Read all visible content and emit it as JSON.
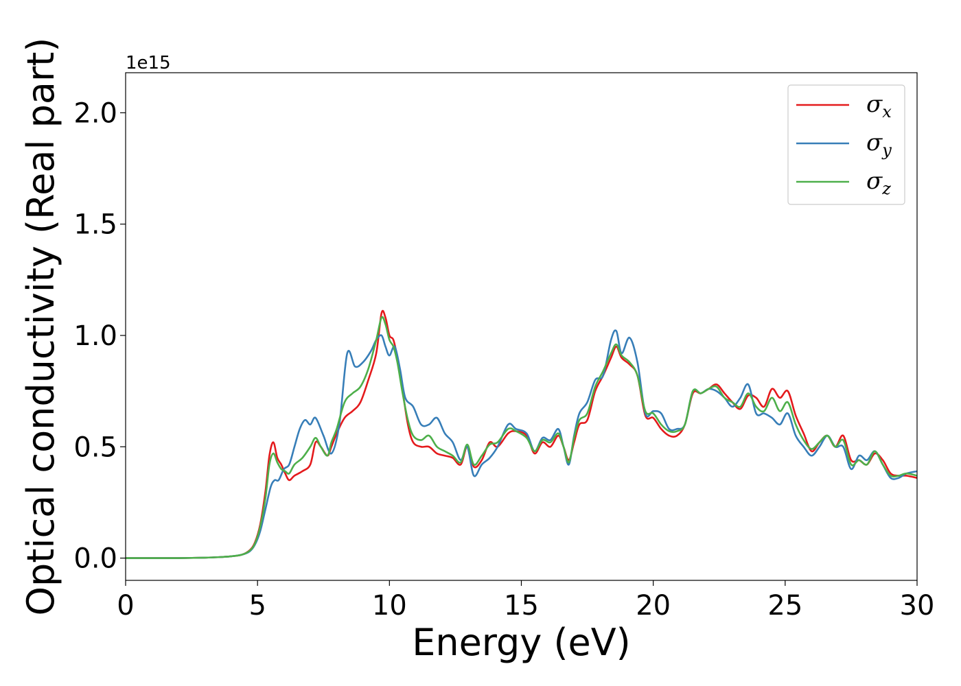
{
  "chart_data": {
    "type": "line",
    "xlabel": "Energy (eV)",
    "ylabel": "Optical conductivity (Real part)",
    "y_offset_label": "1e15",
    "xlim": [
      0,
      30
    ],
    "ylim": [
      -0.1,
      2.18
    ],
    "xticks": [
      0,
      5,
      10,
      15,
      20,
      25,
      30
    ],
    "xtick_labels": [
      "0",
      "5",
      "10",
      "15",
      "20",
      "25",
      "30"
    ],
    "yticks": [
      0.0,
      0.5,
      1.0,
      1.5,
      2.0
    ],
    "ytick_labels": [
      "0.0",
      "0.5",
      "1.0",
      "1.5",
      "2.0"
    ],
    "grid": false,
    "legend_position": "top-right",
    "series": [
      {
        "name": "σ",
        "sub": "x",
        "color": "#e41a1c",
        "x": [
          0,
          1,
          2,
          3,
          3.5,
          4,
          4.4,
          4.7,
          4.9,
          5.1,
          5.3,
          5.45,
          5.6,
          5.75,
          5.9,
          6.05,
          6.2,
          6.4,
          6.7,
          7.0,
          7.2,
          7.4,
          7.65,
          7.8,
          8.0,
          8.3,
          8.6,
          8.9,
          9.2,
          9.5,
          9.7,
          9.85,
          10.0,
          10.15,
          10.3,
          10.5,
          10.7,
          10.9,
          11.2,
          11.5,
          11.8,
          12.1,
          12.4,
          12.7,
          12.95,
          13.2,
          13.5,
          13.8,
          14.1,
          14.5,
          14.8,
          15.2,
          15.5,
          15.8,
          16.1,
          16.4,
          16.6,
          16.8,
          17.0,
          17.2,
          17.5,
          17.8,
          18.1,
          18.4,
          18.6,
          18.8,
          19.1,
          19.4,
          19.7,
          20.0,
          20.3,
          20.6,
          20.9,
          21.2,
          21.5,
          21.8,
          22.1,
          22.4,
          22.7,
          23.0,
          23.3,
          23.6,
          23.9,
          24.2,
          24.5,
          24.8,
          25.1,
          25.4,
          25.7,
          26.0,
          26.3,
          26.6,
          26.9,
          27.2,
          27.5,
          27.8,
          28.1,
          28.4,
          28.7,
          29.0,
          29.3,
          29.6,
          30.0
        ],
        "y": [
          0,
          0,
          0,
          0.002,
          0.004,
          0.008,
          0.015,
          0.035,
          0.07,
          0.15,
          0.3,
          0.46,
          0.52,
          0.45,
          0.42,
          0.38,
          0.35,
          0.37,
          0.39,
          0.42,
          0.52,
          0.5,
          0.46,
          0.5,
          0.56,
          0.63,
          0.66,
          0.7,
          0.8,
          0.92,
          1.1,
          1.08,
          1.0,
          0.98,
          0.9,
          0.75,
          0.6,
          0.52,
          0.5,
          0.5,
          0.47,
          0.46,
          0.45,
          0.42,
          0.5,
          0.41,
          0.44,
          0.52,
          0.5,
          0.56,
          0.57,
          0.55,
          0.47,
          0.52,
          0.5,
          0.55,
          0.5,
          0.44,
          0.52,
          0.6,
          0.62,
          0.75,
          0.82,
          0.9,
          0.95,
          0.9,
          0.87,
          0.82,
          0.64,
          0.63,
          0.58,
          0.55,
          0.55,
          0.6,
          0.74,
          0.74,
          0.76,
          0.78,
          0.74,
          0.7,
          0.67,
          0.73,
          0.72,
          0.68,
          0.76,
          0.72,
          0.75,
          0.64,
          0.56,
          0.48,
          0.52,
          0.55,
          0.5,
          0.55,
          0.44,
          0.44,
          0.42,
          0.47,
          0.44,
          0.38,
          0.37,
          0.37,
          0.36
        ]
      },
      {
        "name": "σ",
        "sub": "y",
        "color": "#377eb8",
        "x": [
          0,
          1,
          2,
          3,
          3.5,
          4,
          4.4,
          4.7,
          4.9,
          5.1,
          5.3,
          5.5,
          5.65,
          5.8,
          6.0,
          6.2,
          6.4,
          6.6,
          6.8,
          7.0,
          7.2,
          7.5,
          7.8,
          8.1,
          8.4,
          8.7,
          9.0,
          9.3,
          9.5,
          9.7,
          9.85,
          10.0,
          10.2,
          10.4,
          10.6,
          10.9,
          11.2,
          11.5,
          11.8,
          12.1,
          12.4,
          12.7,
          12.95,
          13.2,
          13.5,
          13.8,
          14.1,
          14.5,
          14.8,
          15.2,
          15.5,
          15.8,
          16.1,
          16.4,
          16.6,
          16.8,
          17.0,
          17.2,
          17.5,
          17.8,
          18.1,
          18.4,
          18.6,
          18.8,
          19.1,
          19.4,
          19.7,
          20.0,
          20.3,
          20.6,
          20.9,
          21.2,
          21.5,
          21.8,
          22.1,
          22.4,
          22.7,
          23.0,
          23.3,
          23.6,
          23.9,
          24.2,
          24.5,
          24.8,
          25.1,
          25.4,
          25.7,
          26.0,
          26.3,
          26.6,
          26.9,
          27.2,
          27.5,
          27.8,
          28.1,
          28.4,
          28.7,
          29.0,
          29.3,
          29.6,
          30.0
        ],
        "y": [
          0,
          0,
          0,
          0.002,
          0.004,
          0.008,
          0.015,
          0.03,
          0.06,
          0.12,
          0.22,
          0.32,
          0.35,
          0.35,
          0.4,
          0.42,
          0.5,
          0.58,
          0.62,
          0.6,
          0.63,
          0.55,
          0.47,
          0.6,
          0.92,
          0.86,
          0.88,
          0.93,
          0.98,
          1.0,
          0.95,
          0.91,
          0.95,
          0.85,
          0.72,
          0.68,
          0.6,
          0.6,
          0.63,
          0.56,
          0.52,
          0.44,
          0.5,
          0.37,
          0.42,
          0.45,
          0.5,
          0.6,
          0.58,
          0.56,
          0.48,
          0.54,
          0.53,
          0.58,
          0.5,
          0.42,
          0.55,
          0.65,
          0.7,
          0.8,
          0.82,
          0.98,
          1.02,
          0.92,
          0.99,
          0.88,
          0.65,
          0.66,
          0.65,
          0.58,
          0.58,
          0.6,
          0.75,
          0.74,
          0.76,
          0.75,
          0.72,
          0.68,
          0.72,
          0.78,
          0.65,
          0.65,
          0.63,
          0.6,
          0.65,
          0.55,
          0.5,
          0.46,
          0.5,
          0.55,
          0.5,
          0.5,
          0.4,
          0.46,
          0.44,
          0.48,
          0.42,
          0.36,
          0.36,
          0.38,
          0.39
        ]
      },
      {
        "name": "σ",
        "sub": "z",
        "color": "#4daf4a",
        "x": [
          0,
          1,
          2,
          3,
          3.5,
          4,
          4.4,
          4.7,
          4.9,
          5.1,
          5.3,
          5.45,
          5.6,
          5.75,
          5.9,
          6.05,
          6.2,
          6.4,
          6.7,
          7.0,
          7.2,
          7.4,
          7.65,
          7.8,
          8.0,
          8.3,
          8.6,
          8.9,
          9.2,
          9.5,
          9.7,
          9.85,
          10.0,
          10.15,
          10.3,
          10.5,
          10.7,
          10.9,
          11.2,
          11.5,
          11.8,
          12.1,
          12.4,
          12.7,
          12.95,
          13.2,
          13.5,
          13.8,
          14.1,
          14.5,
          14.8,
          15.2,
          15.5,
          15.8,
          16.1,
          16.4,
          16.6,
          16.8,
          17.0,
          17.2,
          17.5,
          17.8,
          18.1,
          18.4,
          18.6,
          18.8,
          19.1,
          19.4,
          19.7,
          20.0,
          20.3,
          20.6,
          20.9,
          21.2,
          21.5,
          21.8,
          22.1,
          22.4,
          22.7,
          23.0,
          23.3,
          23.6,
          23.9,
          24.2,
          24.5,
          24.8,
          25.1,
          25.4,
          25.7,
          26.0,
          26.3,
          26.6,
          26.9,
          27.2,
          27.5,
          27.8,
          28.1,
          28.4,
          28.7,
          29.0,
          29.3,
          29.6,
          30.0
        ],
        "y": [
          0,
          0,
          0,
          0.002,
          0.004,
          0.008,
          0.015,
          0.033,
          0.065,
          0.14,
          0.27,
          0.42,
          0.47,
          0.43,
          0.4,
          0.39,
          0.38,
          0.42,
          0.45,
          0.5,
          0.54,
          0.5,
          0.46,
          0.52,
          0.58,
          0.7,
          0.74,
          0.77,
          0.85,
          0.98,
          1.08,
          1.05,
          0.98,
          0.95,
          0.88,
          0.74,
          0.62,
          0.55,
          0.53,
          0.55,
          0.5,
          0.48,
          0.46,
          0.43,
          0.51,
          0.42,
          0.46,
          0.51,
          0.52,
          0.58,
          0.57,
          0.54,
          0.48,
          0.53,
          0.52,
          0.56,
          0.5,
          0.43,
          0.54,
          0.62,
          0.65,
          0.77,
          0.84,
          0.92,
          0.96,
          0.91,
          0.88,
          0.82,
          0.66,
          0.65,
          0.6,
          0.57,
          0.57,
          0.6,
          0.75,
          0.74,
          0.76,
          0.77,
          0.72,
          0.7,
          0.68,
          0.74,
          0.68,
          0.66,
          0.72,
          0.66,
          0.7,
          0.6,
          0.53,
          0.49,
          0.52,
          0.55,
          0.5,
          0.53,
          0.42,
          0.44,
          0.42,
          0.48,
          0.42,
          0.37,
          0.37,
          0.38,
          0.37
        ]
      }
    ]
  }
}
